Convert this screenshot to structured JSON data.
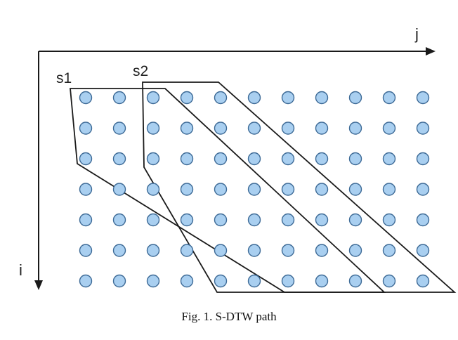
{
  "figure": {
    "caption": "Fig. 1.  S-DTW path",
    "axis_j_label": "j",
    "axis_i_label": "i",
    "bands": [
      {
        "name": "s1"
      },
      {
        "name": "s2"
      }
    ],
    "grid": {
      "rows": 7,
      "cols": 11
    },
    "colors": {
      "dot_fill": "#a9cff0",
      "dot_stroke": "#3d6a96",
      "line": "#1a1a1a"
    }
  }
}
